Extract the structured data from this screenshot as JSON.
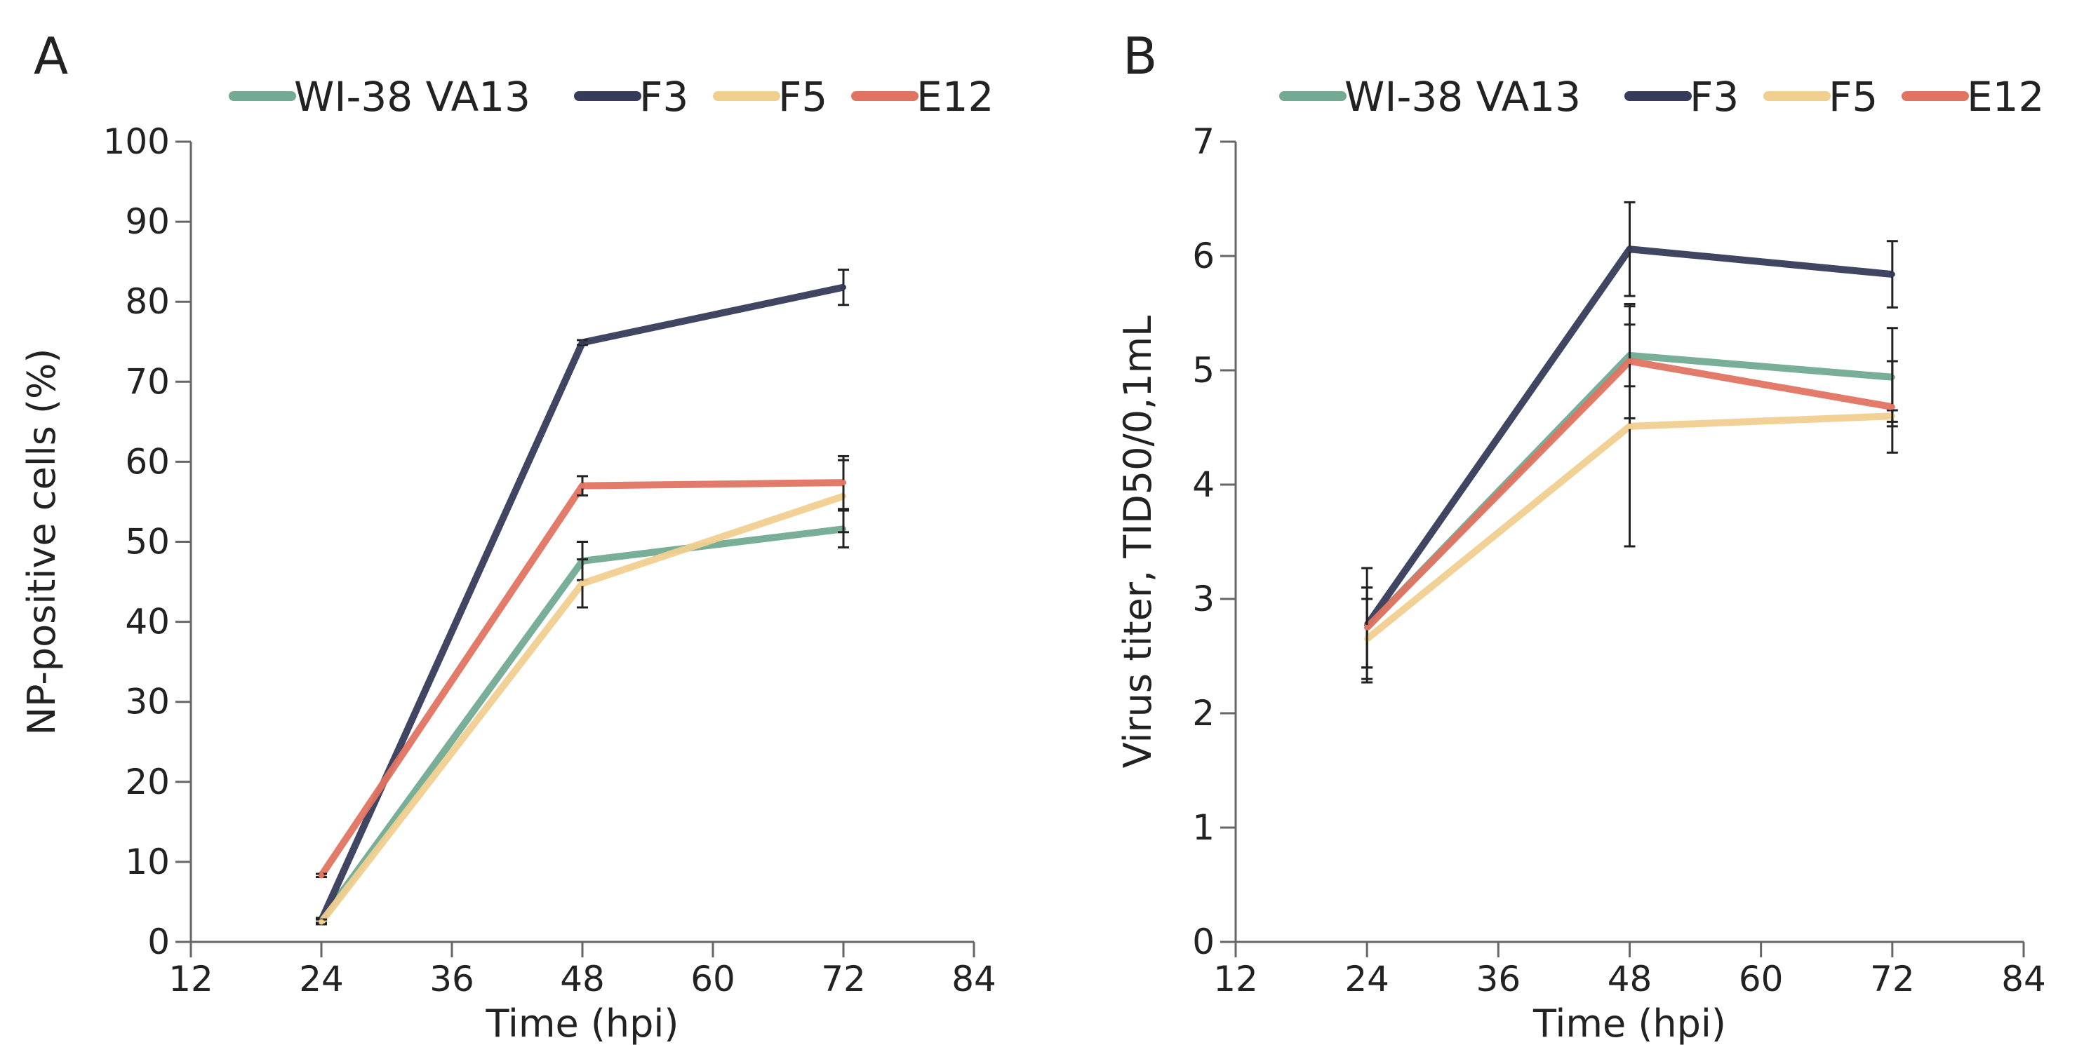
{
  "chart_data": [
    {
      "panel_label": "A",
      "type": "line",
      "xlabel": "Time (hpi)",
      "ylabel": "NP-positive cells (%)",
      "xlim": [
        12,
        84
      ],
      "ylim": [
        0,
        100
      ],
      "xticks": [
        12,
        24,
        36,
        48,
        60,
        72,
        84
      ],
      "yticks": [
        0,
        10,
        20,
        30,
        40,
        50,
        60,
        70,
        80,
        90,
        100
      ],
      "legend_position": "top",
      "grid": false,
      "x": [
        24,
        48,
        72
      ],
      "series": [
        {
          "name": "WI-38 VA13",
          "color": "#72aa92",
          "values": [
            2.7,
            47.6,
            51.6
          ],
          "errors": [
            0.3,
            2.4,
            2.3
          ]
        },
        {
          "name": "F3",
          "color": "#363b5a",
          "values": [
            2.7,
            74.9,
            81.8
          ],
          "errors": [
            0.3,
            0.3,
            2.2
          ]
        },
        {
          "name": "F5",
          "color": "#f0cf8f",
          "values": [
            2.5,
            44.8,
            55.7
          ],
          "errors": [
            0.3,
            3.0,
            4.5
          ]
        },
        {
          "name": "E12",
          "color": "#e07461",
          "values": [
            8.3,
            57.0,
            57.4
          ],
          "errors": [
            0.2,
            1.2,
            3.3
          ]
        }
      ]
    },
    {
      "panel_label": "B",
      "type": "line",
      "xlabel": "Time (hpi)",
      "ylabel": "Virus titer, TID50/0,1mL",
      "xlim": [
        12,
        84
      ],
      "ylim": [
        0,
        7
      ],
      "xticks": [
        12,
        24,
        36,
        48,
        60,
        72,
        84
      ],
      "yticks": [
        0,
        1,
        2,
        3,
        4,
        5,
        6,
        7
      ],
      "legend_position": "top",
      "grid": false,
      "x": [
        24,
        48,
        72
      ],
      "series": [
        {
          "name": "WI-38 VA13",
          "color": "#72aa92",
          "values": [
            2.75,
            5.13,
            4.94
          ],
          "errors": [
            0.35,
            0.27,
            0.43
          ]
        },
        {
          "name": "F3",
          "color": "#363b5a",
          "values": [
            2.77,
            6.06,
            5.84
          ],
          "errors": [
            0.5,
            0.41,
            0.29
          ]
        },
        {
          "name": "F5",
          "color": "#f0cf8f",
          "values": [
            2.65,
            4.51,
            4.6
          ],
          "errors": [
            0.35,
            1.05,
            0.05
          ]
        },
        {
          "name": "E12",
          "color": "#e07461",
          "values": [
            2.75,
            5.08,
            4.68
          ],
          "errors": [
            0.35,
            0.5,
            0.4
          ]
        }
      ]
    }
  ]
}
